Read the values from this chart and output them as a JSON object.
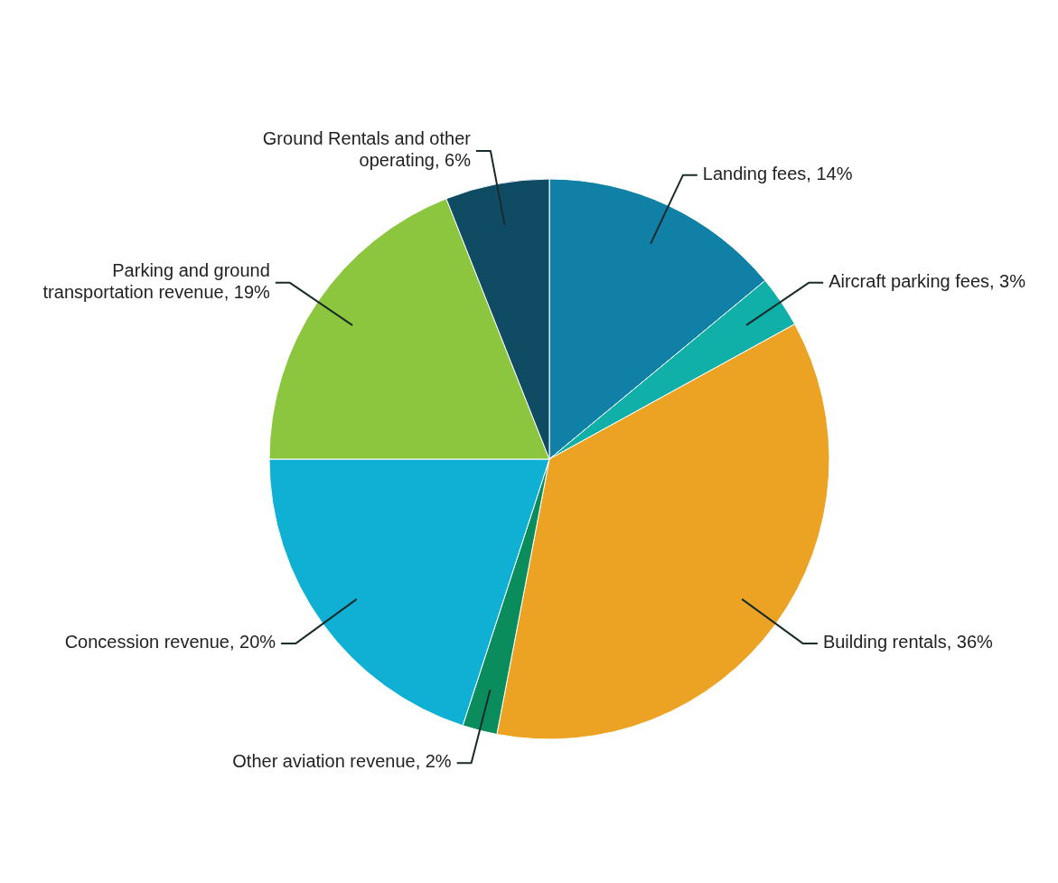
{
  "chart_data": {
    "type": "pie",
    "categories": [
      "Landing fees",
      "Aircraft parking fees",
      "Building rentals",
      "Other aviation revenue",
      "Concession revenue",
      "Parking and ground transportation revenue",
      "Ground Rentals and other operating"
    ],
    "values": [
      14,
      3,
      36,
      2,
      20,
      19,
      6
    ],
    "value_labels": [
      "14%",
      "3%",
      "36%",
      "2%",
      "20%",
      "19%",
      "6%"
    ],
    "colors": [
      "#1080a6",
      "#10b0a8",
      "#eca324",
      "#0a8c5c",
      "#10afd4",
      "#8cc63f",
      "#0f4c63"
    ]
  }
}
